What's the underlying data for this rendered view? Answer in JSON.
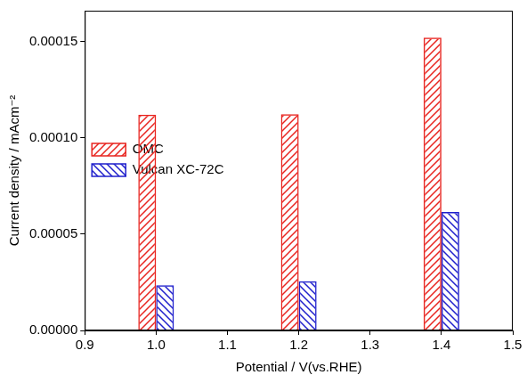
{
  "chart_data": {
    "type": "bar",
    "x_label": "Potential / V(vs.RHE)",
    "y_label": "Current density / mAcm⁻²",
    "x": [
      1.0,
      1.2,
      1.4
    ],
    "series": [
      {
        "name": "OMC",
        "color": "#e8241f",
        "values": [
          0.000112,
          0.0001122,
          0.000152
        ]
      },
      {
        "name": "Vulcan XC-72C",
        "color": "#1f1fcc",
        "values": [
          2.35e-05,
          2.55e-05,
          6.15e-05
        ]
      }
    ],
    "xlim": [
      0.9,
      1.5
    ],
    "xticks": [
      0.9,
      {
        "value": 1.0,
        "label": "1.0"
      },
      1.1,
      1.2,
      1.3,
      1.4,
      1.5
    ],
    "ylim": [
      0,
      0.000166
    ],
    "yticks": [
      {
        "value": 0,
        "label": "0.00000"
      },
      {
        "value": 5e-05,
        "label": "0.00005"
      },
      {
        "value": 0.0001,
        "label": "0.00010"
      },
      {
        "value": 0.00015,
        "label": "0.00015"
      }
    ],
    "grid": false,
    "legend": "top"
  }
}
